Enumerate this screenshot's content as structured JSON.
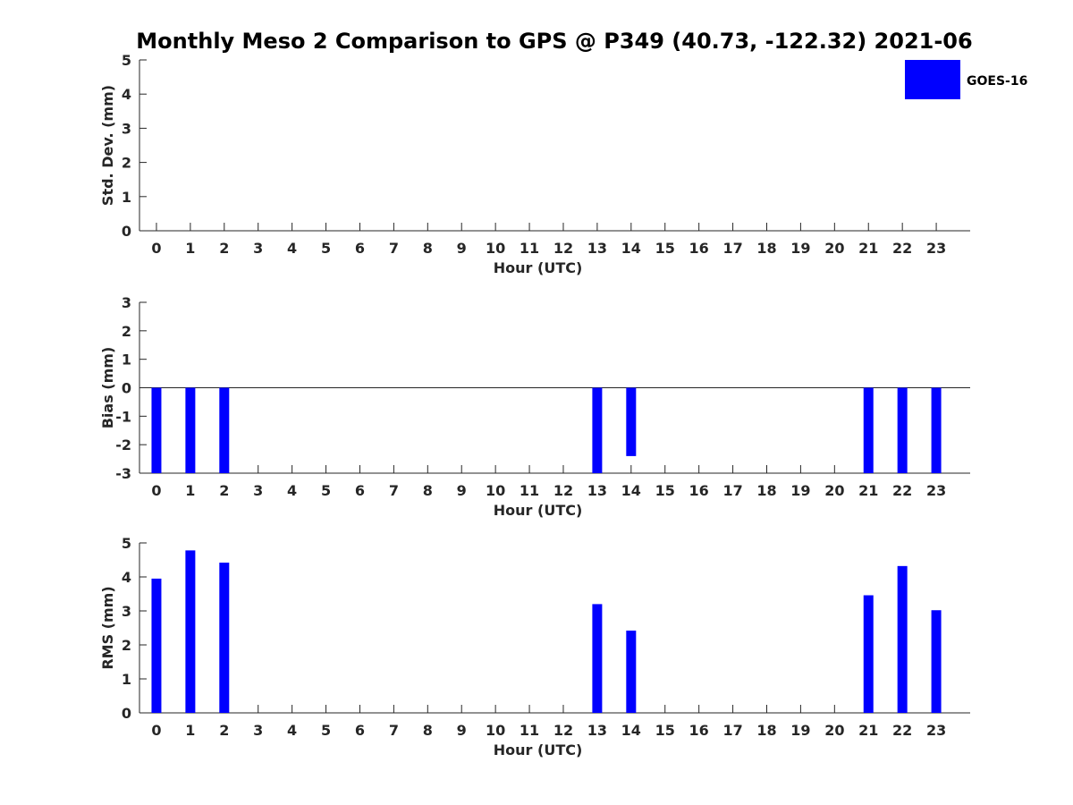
{
  "figure": {
    "title": "Monthly Meso 2 Comparison to GPS @ P349 (40.73, -122.32) 2021-06",
    "legend": {
      "label": "GOES-16",
      "color": "#0000ff",
      "placement": "top-right"
    }
  },
  "chart_data": [
    {
      "type": "bar",
      "id": "std",
      "ylabel": "Std. Dev. (mm)",
      "xlabel": "Hour (UTC)",
      "categories": [
        "0",
        "1",
        "2",
        "3",
        "4",
        "5",
        "6",
        "7",
        "8",
        "9",
        "10",
        "11",
        "12",
        "13",
        "14",
        "15",
        "16",
        "17",
        "18",
        "19",
        "20",
        "21",
        "22",
        "23"
      ],
      "yticks": [
        "0",
        "1",
        "2",
        "3",
        "4",
        "5"
      ],
      "ylim": [
        0,
        5
      ],
      "baseline": 0,
      "series": [
        {
          "name": "GOES-16",
          "color": "#0000ff",
          "values": [
            null,
            null,
            null,
            null,
            null,
            null,
            null,
            null,
            null,
            null,
            null,
            null,
            null,
            null,
            null,
            null,
            null,
            null,
            null,
            null,
            null,
            null,
            null,
            null
          ]
        }
      ]
    },
    {
      "type": "bar",
      "id": "bias",
      "ylabel": "Bias (mm)",
      "xlabel": "Hour (UTC)",
      "categories": [
        "0",
        "1",
        "2",
        "3",
        "4",
        "5",
        "6",
        "7",
        "8",
        "9",
        "10",
        "11",
        "12",
        "13",
        "14",
        "15",
        "16",
        "17",
        "18",
        "19",
        "20",
        "21",
        "22",
        "23"
      ],
      "yticks": [
        "-3",
        "-2",
        "-1",
        "0",
        "1",
        "2",
        "3"
      ],
      "ylim": [
        -3,
        3
      ],
      "baseline": 0,
      "zero_line": true,
      "series": [
        {
          "name": "GOES-16",
          "color": "#0000ff",
          "values": [
            -3,
            -3,
            -3,
            null,
            null,
            null,
            null,
            null,
            null,
            null,
            null,
            null,
            null,
            -3,
            -2.4,
            null,
            null,
            null,
            null,
            null,
            null,
            -3,
            -3,
            -3
          ]
        }
      ]
    },
    {
      "type": "bar",
      "id": "rms",
      "ylabel": "RMS (mm)",
      "xlabel": "Hour (UTC)",
      "categories": [
        "0",
        "1",
        "2",
        "3",
        "4",
        "5",
        "6",
        "7",
        "8",
        "9",
        "10",
        "11",
        "12",
        "13",
        "14",
        "15",
        "16",
        "17",
        "18",
        "19",
        "20",
        "21",
        "22",
        "23"
      ],
      "yticks": [
        "0",
        "1",
        "2",
        "3",
        "4",
        "5"
      ],
      "ylim": [
        0,
        5
      ],
      "baseline": 0,
      "series": [
        {
          "name": "GOES-16",
          "color": "#0000ff",
          "values": [
            3.95,
            4.78,
            4.42,
            null,
            null,
            null,
            null,
            null,
            null,
            null,
            null,
            null,
            null,
            3.2,
            2.42,
            null,
            null,
            null,
            null,
            null,
            null,
            3.46,
            4.32,
            3.02
          ]
        }
      ]
    }
  ]
}
